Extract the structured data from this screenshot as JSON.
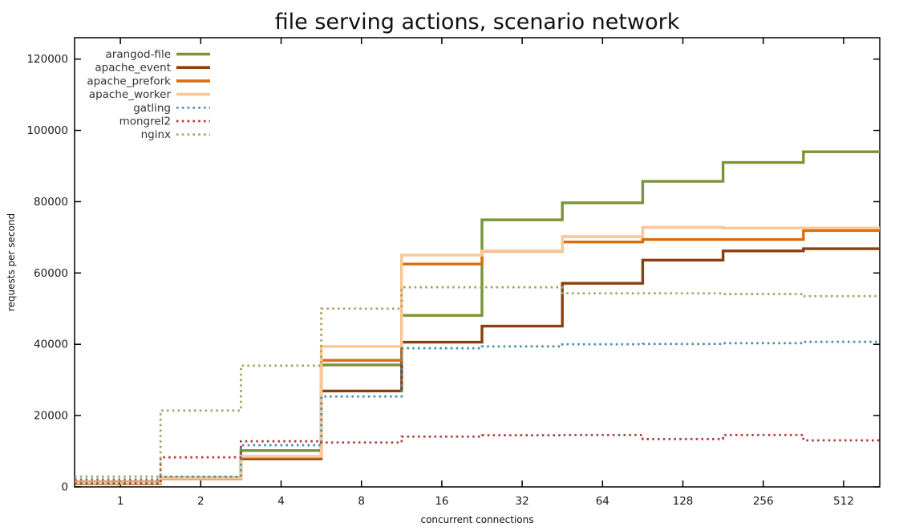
{
  "chart_data": {
    "type": "line",
    "subtype": "histeps-step-chart",
    "title": "file serving actions, scenario network",
    "xlabel": "concurrent connections",
    "ylabel": "requests per second",
    "x_scale": "log2",
    "grid": false,
    "legend_position": "top-left-inside",
    "x": [
      1,
      2,
      4,
      8,
      16,
      32,
      64,
      128,
      256,
      512
    ],
    "x_tick_labels": [
      "1",
      "2",
      "4",
      "8",
      "16",
      "32",
      "64",
      "128",
      "256",
      "512"
    ],
    "y_ticks": [
      0,
      20000,
      40000,
      60000,
      80000,
      100000,
      120000
    ],
    "y_tick_labels": [
      "0",
      "20000",
      "40000",
      "60000",
      "80000",
      "100000",
      "120000"
    ],
    "ylim": [
      0,
      126000
    ],
    "xlim_log2": [
      -0.57,
      9.45
    ],
    "series": [
      {
        "name": "arangod-file",
        "color": "#7b9437",
        "dash": "solid",
        "values": [
          900,
          2600,
          10200,
          34200,
          48100,
          74900,
          79700,
          85700,
          91000,
          94000
        ]
      },
      {
        "name": "apache_event",
        "color": "#8b3e0f",
        "dash": "solid",
        "values": [
          1100,
          2500,
          7900,
          26900,
          40600,
          45100,
          57100,
          63600,
          66200,
          66800
        ]
      },
      {
        "name": "apache_prefork",
        "color": "#d96d0d",
        "dash": "solid",
        "values": [
          1350,
          2300,
          8300,
          35500,
          62500,
          66100,
          68700,
          69400,
          69400,
          71900
        ]
      },
      {
        "name": "apache_worker",
        "color": "#fac795",
        "dash": "solid",
        "values": [
          1100,
          2500,
          8550,
          39400,
          65000,
          66200,
          70200,
          72800,
          72600,
          72600
        ]
      },
      {
        "name": "gatling",
        "color": "#4090ac",
        "dash": "dotted",
        "values": [
          2100,
          2850,
          11700,
          25350,
          38900,
          39400,
          40000,
          40100,
          40300,
          40700
        ]
      },
      {
        "name": "mongrel2",
        "color": "#b13c3c",
        "dash": "dotted",
        "values": [
          1000,
          8300,
          12800,
          12450,
          14100,
          14500,
          14550,
          13400,
          14550,
          13050
        ]
      },
      {
        "name": "nginx",
        "color": "#aaa05f",
        "dash": "dotted",
        "values": [
          2900,
          21400,
          34000,
          50000,
          56000,
          56000,
          54300,
          54300,
          54100,
          53500
        ]
      }
    ],
    "axis_color": "#000000",
    "text_color": "#1a1a1a"
  }
}
